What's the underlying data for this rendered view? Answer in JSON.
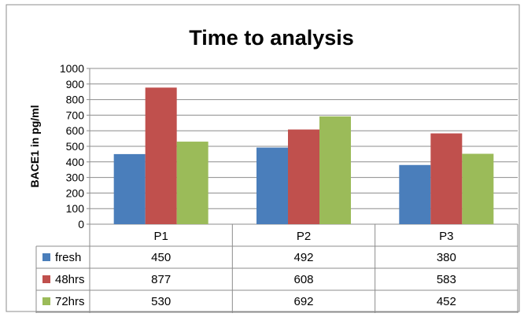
{
  "chart_data": {
    "type": "bar",
    "title": "Time to analysis",
    "ylabel": "BACE1 in pg/ml",
    "xlabel": "",
    "categories": [
      "P1",
      "P2",
      "P3"
    ],
    "ylim": [
      0,
      1000
    ],
    "yticks": [
      0,
      100,
      200,
      300,
      400,
      500,
      600,
      700,
      800,
      900,
      1000
    ],
    "grid": true,
    "legend": "data-table",
    "series": [
      {
        "name": "fresh",
        "color": "#4a7ebb",
        "values": [
          450,
          492,
          380
        ]
      },
      {
        "name": "48hrs",
        "color": "#c0504d",
        "values": [
          877,
          608,
          583
        ]
      },
      {
        "name": "72hrs",
        "color": "#9bbb59",
        "values": [
          530,
          692,
          452
        ]
      }
    ]
  }
}
